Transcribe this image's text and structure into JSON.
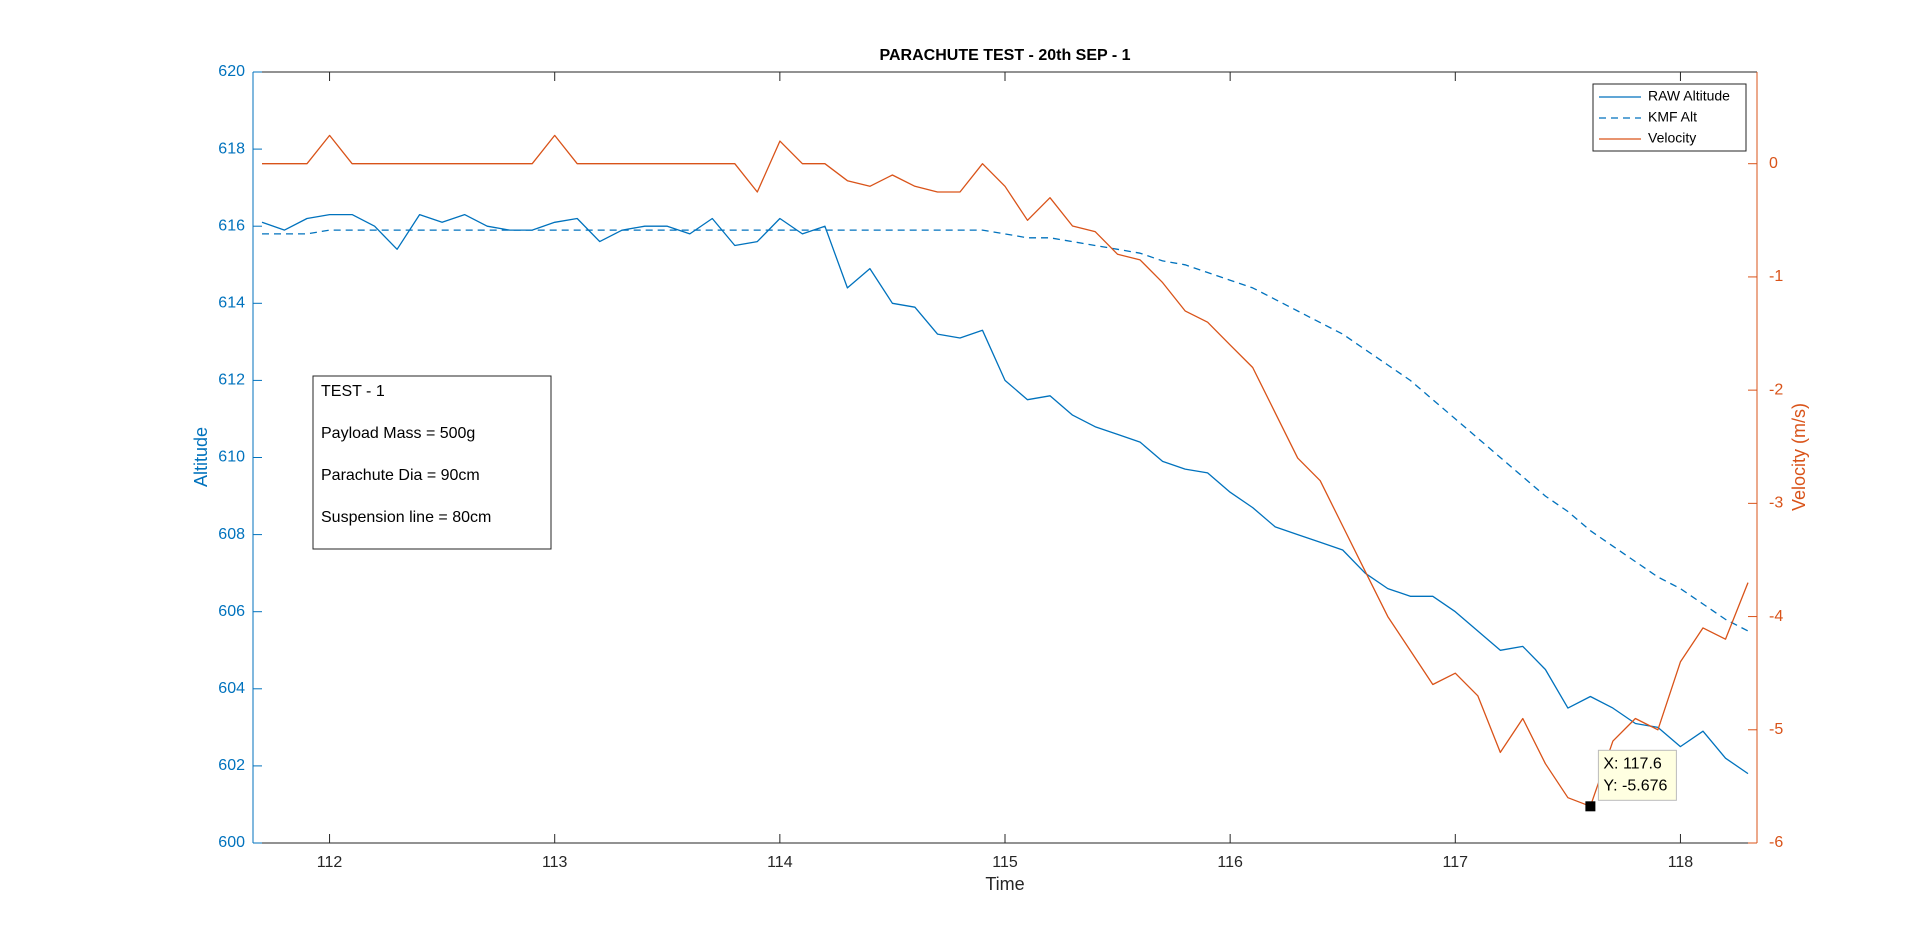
{
  "chart_data": {
    "type": "line",
    "title": "PARACHUTE TEST - 20th SEP - 1",
    "x_label": "Time",
    "y_label": "Altitude",
    "y2_label": "Velocity (m/s)",
    "x": [
      111.7,
      111.8,
      111.9,
      112.0,
      112.1,
      112.2,
      112.3,
      112.4,
      112.5,
      112.6,
      112.7,
      112.8,
      112.9,
      113.0,
      113.1,
      113.2,
      113.3,
      113.4,
      113.5,
      113.6,
      113.7,
      113.8,
      113.9,
      114.0,
      114.1,
      114.2,
      114.3,
      114.4,
      114.5,
      114.6,
      114.7,
      114.8,
      114.9,
      115.0,
      115.1,
      115.2,
      115.3,
      115.4,
      115.5,
      115.6,
      115.7,
      115.8,
      115.9,
      116.0,
      116.1,
      116.2,
      116.3,
      116.4,
      116.5,
      116.6,
      116.7,
      116.8,
      116.9,
      117.0,
      117.1,
      117.2,
      117.3,
      117.4,
      117.5,
      117.6,
      117.7,
      117.8,
      117.9,
      118.0,
      118.1,
      118.2,
      118.3
    ],
    "series": [
      {
        "name": "RAW Altitude",
        "color": "#0072bd",
        "dash": "solid",
        "axis": "y",
        "values": [
          616.1,
          615.9,
          616.2,
          616.3,
          616.3,
          616.0,
          615.4,
          616.3,
          616.1,
          616.3,
          616.0,
          615.9,
          615.9,
          616.1,
          616.2,
          615.6,
          615.9,
          616.0,
          616.0,
          615.8,
          616.2,
          615.5,
          615.6,
          616.2,
          615.8,
          616.0,
          614.4,
          614.9,
          614.0,
          613.9,
          613.2,
          613.1,
          613.3,
          612.0,
          611.5,
          611.6,
          611.1,
          610.8,
          610.6,
          610.4,
          609.9,
          609.7,
          609.6,
          609.1,
          608.7,
          608.2,
          608.0,
          607.8,
          607.6,
          607.0,
          606.6,
          606.4,
          606.4,
          606.0,
          605.5,
          605.0,
          605.1,
          604.5,
          603.5,
          603.8,
          603.5,
          603.1,
          603.0,
          602.5,
          602.9,
          602.2,
          601.8
        ]
      },
      {
        "name": "KMF Alt",
        "color": "#0072bd",
        "dash": "dashed",
        "axis": "y",
        "values": [
          615.8,
          615.8,
          615.8,
          615.9,
          615.9,
          615.9,
          615.9,
          615.9,
          615.9,
          615.9,
          615.9,
          615.9,
          615.9,
          615.9,
          615.9,
          615.9,
          615.9,
          615.9,
          615.9,
          615.9,
          615.9,
          615.9,
          615.9,
          615.9,
          615.9,
          615.9,
          615.9,
          615.9,
          615.9,
          615.9,
          615.9,
          615.9,
          615.9,
          615.8,
          615.7,
          615.7,
          615.6,
          615.5,
          615.4,
          615.3,
          615.1,
          615.0,
          614.8,
          614.6,
          614.4,
          614.1,
          613.8,
          613.5,
          613.2,
          612.8,
          612.4,
          612.0,
          611.5,
          611.0,
          610.5,
          610.0,
          609.5,
          609.0,
          608.6,
          608.1,
          607.7,
          607.3,
          606.9,
          606.6,
          606.2,
          605.8,
          605.5
        ]
      },
      {
        "name": "Velocity",
        "color": "#d95319",
        "dash": "solid",
        "axis": "y2",
        "values": [
          0,
          0,
          0,
          0.25,
          0,
          0,
          0,
          0,
          0,
          0,
          0,
          0,
          0,
          0.25,
          0,
          0,
          0,
          0,
          0,
          0,
          0,
          0,
          -0.25,
          0.2,
          0,
          0,
          -0.15,
          -0.2,
          -0.1,
          -0.2,
          -0.25,
          -0.25,
          0,
          -0.2,
          -0.5,
          -0.3,
          -0.55,
          -0.6,
          -0.8,
          -0.85,
          -1.05,
          -1.3,
          -1.4,
          -1.6,
          -1.8,
          -2.2,
          -2.6,
          -2.8,
          -3.2,
          -3.6,
          -4.0,
          -4.3,
          -4.6,
          -4.5,
          -4.7,
          -5.2,
          -4.9,
          -5.3,
          -5.6,
          -5.676,
          -5.1,
          -4.9,
          -5.0,
          -4.4,
          -4.1,
          -4.2,
          -3.7
        ]
      }
    ],
    "xlim": [
      111.66,
      118.34
    ],
    "xticks": [
      112,
      113,
      114,
      115,
      116,
      117,
      118
    ],
    "ylim": [
      600,
      620
    ],
    "yticks": [
      600,
      602,
      604,
      606,
      608,
      610,
      612,
      614,
      616,
      618,
      620
    ],
    "y2lim": [
      -6,
      0.81
    ],
    "y2ticks": [
      -6,
      -5,
      -4,
      -3,
      -2,
      -1,
      0
    ],
    "legend_position": "northeast",
    "annotation_box": [
      "TEST - 1",
      "Payload Mass = 500g",
      "Parachute Dia = 90cm",
      "Suspension line = 80cm"
    ],
    "datatip": {
      "series": 2,
      "index": 59,
      "lines": [
        "X: 117.6",
        "Y: -5.676"
      ]
    }
  }
}
